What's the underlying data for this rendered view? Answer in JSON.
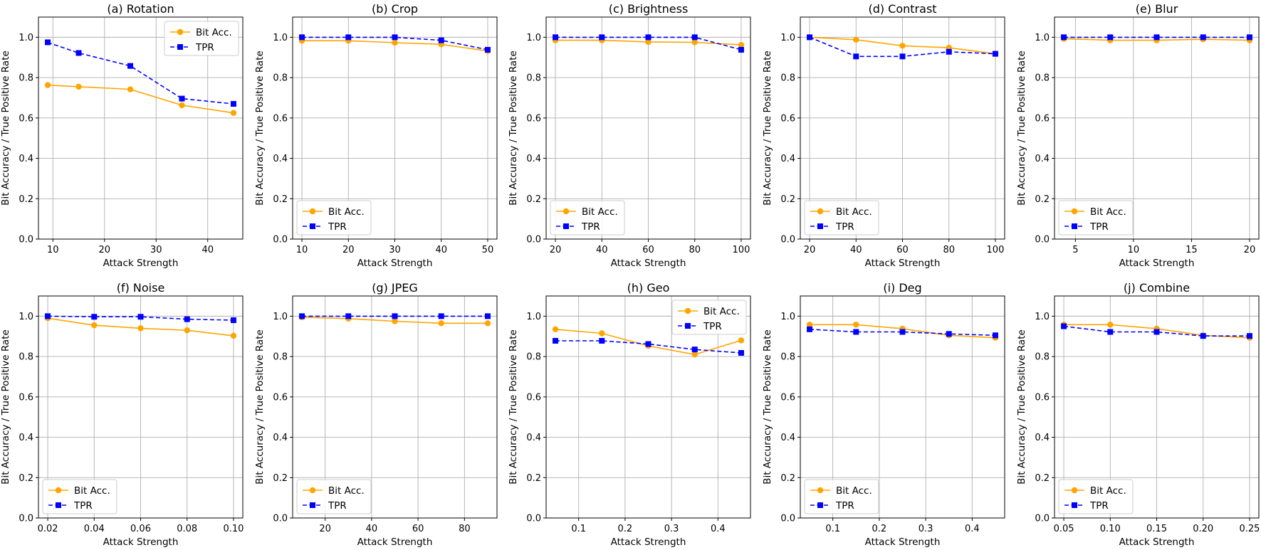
{
  "colors": {
    "bit_acc": "#FFA500",
    "tpr": "#0000FF"
  },
  "chart_data": [
    {
      "type": "line",
      "title": "(a) Rotation",
      "xlabel": "Attack Strength",
      "ylabel": "Bit Accuracy / True Positive Rate",
      "x": [
        9,
        15,
        25,
        35,
        45
      ],
      "xlim": [
        7.2,
        46.8
      ],
      "xticks": [
        10,
        20,
        30,
        40
      ],
      "xtick_labels": [
        "10",
        "20",
        "30",
        "40"
      ],
      "ylim": [
        0,
        1.1
      ],
      "yticks": [
        0,
        0.2,
        0.4,
        0.6,
        0.8,
        1.0
      ],
      "ytick_labels": [
        "0.0",
        "0.2",
        "0.4",
        "0.6",
        "0.8",
        "1.0"
      ],
      "legend_position": "upper-right",
      "series": [
        {
          "name": "Bit Acc.",
          "values": [
            0.763,
            0.755,
            0.742,
            0.663,
            0.625
          ]
        },
        {
          "name": "TPR",
          "values": [
            0.975,
            0.922,
            0.858,
            0.696,
            0.67
          ]
        }
      ]
    },
    {
      "type": "line",
      "title": "(b) Crop",
      "xlabel": "Attack Strength",
      "ylabel": "Bit Accuracy / True Positive Rate",
      "x": [
        10,
        20,
        30,
        40,
        50
      ],
      "xlim": [
        8,
        52
      ],
      "xticks": [
        10,
        20,
        30,
        40,
        50
      ],
      "xtick_labels": [
        "10",
        "20",
        "30",
        "40",
        "50"
      ],
      "ylim": [
        0,
        1.1
      ],
      "yticks": [
        0,
        0.2,
        0.4,
        0.6,
        0.8,
        1.0
      ],
      "ytick_labels": [
        "0.0",
        "0.2",
        "0.4",
        "0.6",
        "0.8",
        "1.0"
      ],
      "legend_position": "lower-left",
      "series": [
        {
          "name": "Bit Acc.",
          "values": [
            0.983,
            0.983,
            0.973,
            0.965,
            0.932
          ]
        },
        {
          "name": "TPR",
          "values": [
            1.0,
            1.0,
            1.0,
            0.985,
            0.938
          ]
        }
      ]
    },
    {
      "type": "line",
      "title": "(c) Brightness",
      "xlabel": "Attack Strength",
      "ylabel": "Bit Accuracy / True Positive Rate",
      "x": [
        20,
        40,
        60,
        80,
        100
      ],
      "xlim": [
        16,
        104
      ],
      "xticks": [
        20,
        40,
        60,
        80,
        100
      ],
      "xtick_labels": [
        "20",
        "40",
        "60",
        "80",
        "100"
      ],
      "ylim": [
        0,
        1.1
      ],
      "yticks": [
        0,
        0.2,
        0.4,
        0.6,
        0.8,
        1.0
      ],
      "ytick_labels": [
        "0.0",
        "0.2",
        "0.4",
        "0.6",
        "0.8",
        "1.0"
      ],
      "legend_position": "lower-left",
      "series": [
        {
          "name": "Bit Acc.",
          "values": [
            0.985,
            0.985,
            0.977,
            0.975,
            0.962
          ]
        },
        {
          "name": "TPR",
          "values": [
            1.0,
            1.0,
            1.0,
            1.0,
            0.938
          ]
        }
      ]
    },
    {
      "type": "line",
      "title": "(d) Contrast",
      "xlabel": "Attack Strength",
      "ylabel": "Bit Accuracy / True Positive Rate",
      "x": [
        20,
        40,
        60,
        80,
        100
      ],
      "xlim": [
        16,
        104
      ],
      "xticks": [
        20,
        40,
        60,
        80,
        100
      ],
      "xtick_labels": [
        "20",
        "40",
        "60",
        "80",
        "100"
      ],
      "ylim": [
        0,
        1.1
      ],
      "yticks": [
        0,
        0.2,
        0.4,
        0.6,
        0.8,
        1.0
      ],
      "ytick_labels": [
        "0.0",
        "0.2",
        "0.4",
        "0.6",
        "0.8",
        "1.0"
      ],
      "legend_position": "lower-left",
      "series": [
        {
          "name": "Bit Acc.",
          "values": [
            1.0,
            0.988,
            0.958,
            0.948,
            0.918
          ]
        },
        {
          "name": "TPR",
          "values": [
            1.0,
            0.905,
            0.905,
            0.928,
            0.918
          ]
        }
      ]
    },
    {
      "type": "line",
      "title": "(e) Blur",
      "xlabel": "Attack Strength",
      "ylabel": "Bit Accuracy / True Positive Rate",
      "x": [
        4,
        8,
        12,
        16,
        20
      ],
      "xlim": [
        3.2,
        20.8
      ],
      "xticks": [
        5,
        10,
        15,
        20
      ],
      "xtick_labels": [
        "5",
        "10",
        "15",
        "20"
      ],
      "ylim": [
        0,
        1.1
      ],
      "yticks": [
        0,
        0.2,
        0.4,
        0.6,
        0.8,
        1.0
      ],
      "ytick_labels": [
        "0.0",
        "0.2",
        "0.4",
        "0.6",
        "0.8",
        "1.0"
      ],
      "legend_position": "lower-left",
      "series": [
        {
          "name": "Bit Acc.",
          "values": [
            0.993,
            0.985,
            0.985,
            0.99,
            0.985
          ]
        },
        {
          "name": "TPR",
          "values": [
            1.0,
            1.0,
            1.0,
            1.0,
            1.0
          ]
        }
      ]
    },
    {
      "type": "line",
      "title": "(f) Noise",
      "xlabel": "Attack Strength",
      "ylabel": "Bit Accuracy / True Positive Rate",
      "x": [
        0.02,
        0.04,
        0.06,
        0.08,
        0.1
      ],
      "xlim": [
        0.016,
        0.104
      ],
      "xticks": [
        0.02,
        0.04,
        0.06,
        0.08,
        0.1
      ],
      "xtick_labels": [
        "0.02",
        "0.04",
        "0.06",
        "0.08",
        "0.10"
      ],
      "ylim": [
        0,
        1.1
      ],
      "yticks": [
        0,
        0.2,
        0.4,
        0.6,
        0.8,
        1.0
      ],
      "ytick_labels": [
        "0.0",
        "0.2",
        "0.4",
        "0.6",
        "0.8",
        "1.0"
      ],
      "legend_position": "lower-left",
      "series": [
        {
          "name": "Bit Acc.",
          "values": [
            0.99,
            0.955,
            0.94,
            0.93,
            0.903
          ]
        },
        {
          "name": "TPR",
          "values": [
            1.0,
            0.997,
            0.997,
            0.985,
            0.98
          ]
        }
      ]
    },
    {
      "type": "line",
      "title": "(g) JPEG",
      "xlabel": "Attack Strength",
      "ylabel": "Bit Accuracy / True Positive Rate",
      "x": [
        10,
        30,
        50,
        70,
        90
      ],
      "xlim": [
        6,
        94
      ],
      "xticks": [
        20,
        40,
        60,
        80
      ],
      "xtick_labels": [
        "20",
        "40",
        "60",
        "80"
      ],
      "ylim": [
        0,
        1.1
      ],
      "yticks": [
        0,
        0.2,
        0.4,
        0.6,
        0.8,
        1.0
      ],
      "ytick_labels": [
        "0.0",
        "0.2",
        "0.4",
        "0.6",
        "0.8",
        "1.0"
      ],
      "legend_position": "lower-left",
      "series": [
        {
          "name": "Bit Acc.",
          "values": [
            0.995,
            0.988,
            0.975,
            0.965,
            0.965
          ]
        },
        {
          "name": "TPR",
          "values": [
            1.0,
            1.0,
            1.0,
            1.0,
            1.0
          ]
        }
      ]
    },
    {
      "type": "line",
      "title": "(h) Geo",
      "xlabel": "Attack Strength",
      "ylabel": "Bit Accuracy / True Positive Rate",
      "x": [
        0.05,
        0.15,
        0.25,
        0.35,
        0.45
      ],
      "xlim": [
        0.03,
        0.47
      ],
      "xticks": [
        0.1,
        0.2,
        0.3,
        0.4
      ],
      "xtick_labels": [
        "0.1",
        "0.2",
        "0.3",
        "0.4"
      ],
      "ylim": [
        0,
        1.1
      ],
      "yticks": [
        0,
        0.2,
        0.4,
        0.6,
        0.8,
        1.0
      ],
      "ytick_labels": [
        "0.0",
        "0.2",
        "0.4",
        "0.6",
        "0.8",
        "1.0"
      ],
      "legend_position": "upper-right",
      "series": [
        {
          "name": "Bit Acc.",
          "values": [
            0.935,
            0.915,
            0.853,
            0.81,
            0.88
          ]
        },
        {
          "name": "TPR",
          "values": [
            0.878,
            0.878,
            0.862,
            0.835,
            0.818
          ]
        }
      ]
    },
    {
      "type": "line",
      "title": "(i) Deg",
      "xlabel": "Attack Strength",
      "ylabel": "Bit Accuracy / True Positive Rate",
      "x": [
        0.05,
        0.15,
        0.25,
        0.35,
        0.45
      ],
      "xlim": [
        0.03,
        0.47
      ],
      "xticks": [
        0.1,
        0.2,
        0.3,
        0.4
      ],
      "xtick_labels": [
        "0.1",
        "0.2",
        "0.3",
        "0.4"
      ],
      "ylim": [
        0,
        1.1
      ],
      "yticks": [
        0,
        0.2,
        0.4,
        0.6,
        0.8,
        1.0
      ],
      "ytick_labels": [
        "0.0",
        "0.2",
        "0.4",
        "0.6",
        "0.8",
        "1.0"
      ],
      "legend_position": "lower-left",
      "series": [
        {
          "name": "Bit Acc.",
          "values": [
            0.958,
            0.958,
            0.938,
            0.905,
            0.893
          ]
        },
        {
          "name": "TPR",
          "values": [
            0.935,
            0.922,
            0.922,
            0.912,
            0.905
          ]
        }
      ]
    },
    {
      "type": "line",
      "title": "(j) Combine",
      "xlabel": "Attack Strength",
      "ylabel": "Bit Accuracy / True Positive Rate",
      "x": [
        0.05,
        0.1,
        0.15,
        0.2,
        0.25
      ],
      "xlim": [
        0.04,
        0.26
      ],
      "xticks": [
        0.05,
        0.1,
        0.15,
        0.2,
        0.25
      ],
      "xtick_labels": [
        "0.05",
        "0.10",
        "0.15",
        "0.20",
        "0.25"
      ],
      "ylim": [
        0,
        1.1
      ],
      "yticks": [
        0,
        0.2,
        0.4,
        0.6,
        0.8,
        1.0
      ],
      "ytick_labels": [
        "0.0",
        "0.2",
        "0.4",
        "0.6",
        "0.8",
        "1.0"
      ],
      "legend_position": "lower-left",
      "series": [
        {
          "name": "Bit Acc.",
          "values": [
            0.958,
            0.958,
            0.938,
            0.905,
            0.893
          ]
        },
        {
          "name": "TPR",
          "values": [
            0.95,
            0.922,
            0.922,
            0.902,
            0.902
          ]
        }
      ]
    }
  ]
}
